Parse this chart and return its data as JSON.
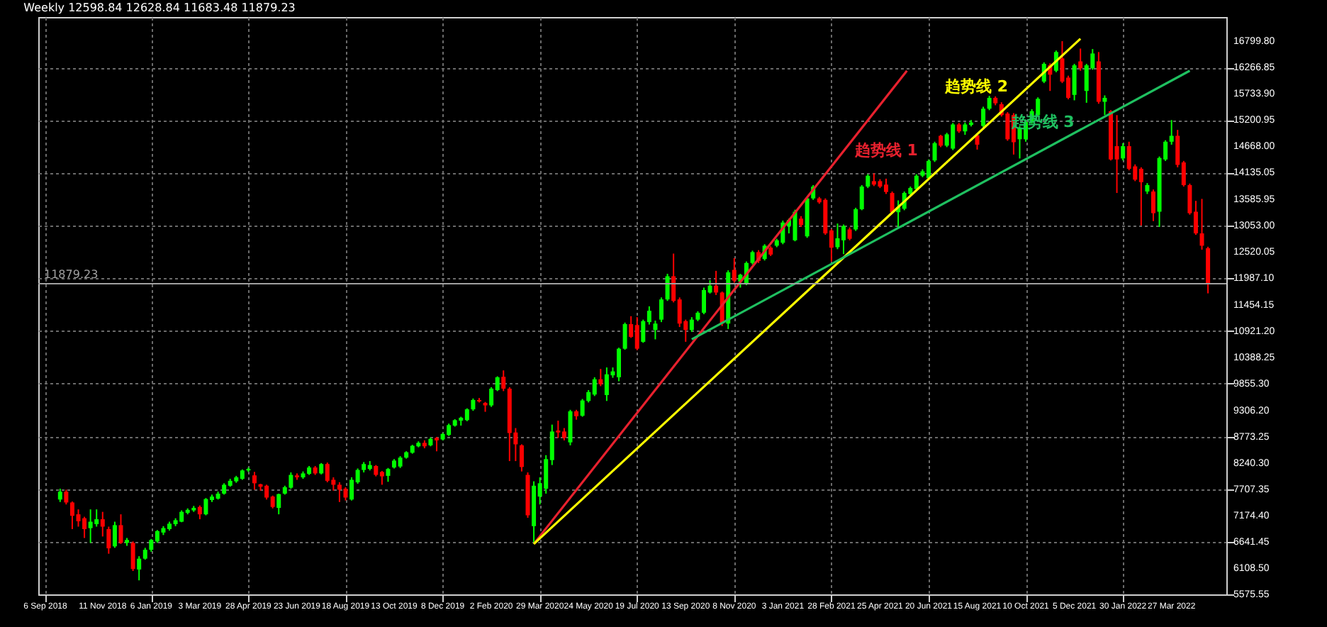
{
  "chart_data": {
    "type": "candlestick",
    "title": "Weekly  12598.84 12628.84 11683.48 11879.23",
    "x": [
      "2018-09-23",
      "2018-09-30",
      "2018-10-07",
      "2018-10-14",
      "2018-10-21",
      "2018-10-28",
      "2018-11-04",
      "2018-11-11",
      "2018-11-18",
      "2018-11-25",
      "2018-12-02",
      "2018-12-09",
      "2018-12-16",
      "2018-12-23",
      "2018-12-30",
      "2019-01-06",
      "2019-01-13",
      "2019-01-20",
      "2019-01-27",
      "2019-02-03",
      "2019-02-10",
      "2019-02-17",
      "2019-02-24",
      "2019-03-03",
      "2019-03-10",
      "2019-03-17",
      "2019-03-24",
      "2019-03-31",
      "2019-04-07",
      "2019-04-14",
      "2019-04-21",
      "2019-04-28",
      "2019-05-05",
      "2019-05-12",
      "2019-05-19",
      "2019-05-26",
      "2019-06-02",
      "2019-06-09",
      "2019-06-16",
      "2019-06-23",
      "2019-06-30",
      "2019-07-07",
      "2019-07-14",
      "2019-07-21",
      "2019-07-28",
      "2019-08-04",
      "2019-08-11",
      "2019-08-18",
      "2019-08-25",
      "2019-09-01",
      "2019-09-08",
      "2019-09-15",
      "2019-09-22",
      "2019-09-29",
      "2019-10-06",
      "2019-10-13",
      "2019-10-20",
      "2019-10-27",
      "2019-11-03",
      "2019-11-10",
      "2019-11-17",
      "2019-11-24",
      "2019-12-01",
      "2019-12-08",
      "2019-12-15",
      "2019-12-22",
      "2019-12-29",
      "2020-01-05",
      "2020-01-12",
      "2020-01-19",
      "2020-01-26",
      "2020-02-02",
      "2020-02-09",
      "2020-02-16",
      "2020-02-23",
      "2020-03-01",
      "2020-03-08",
      "2020-03-15",
      "2020-03-22",
      "2020-03-29",
      "2020-04-05",
      "2020-04-12",
      "2020-04-19",
      "2020-04-26",
      "2020-05-03",
      "2020-05-10",
      "2020-05-17",
      "2020-05-24",
      "2020-05-31",
      "2020-06-07",
      "2020-06-14",
      "2020-06-21",
      "2020-06-28",
      "2020-07-05",
      "2020-07-12",
      "2020-07-19",
      "2020-07-26",
      "2020-08-02",
      "2020-08-09",
      "2020-08-16",
      "2020-08-23",
      "2020-08-30",
      "2020-09-06",
      "2020-09-13",
      "2020-09-20",
      "2020-09-27",
      "2020-10-04",
      "2020-10-11",
      "2020-10-18",
      "2020-10-25",
      "2020-11-01",
      "2020-11-08",
      "2020-11-15",
      "2020-11-22",
      "2020-11-29",
      "2020-12-06",
      "2020-12-13",
      "2020-12-20",
      "2020-12-27",
      "2021-01-03",
      "2021-01-10",
      "2021-01-17",
      "2021-01-24",
      "2021-01-31",
      "2021-02-07",
      "2021-02-14",
      "2021-02-21",
      "2021-02-28",
      "2021-03-07",
      "2021-03-14",
      "2021-03-21",
      "2021-03-28",
      "2021-04-04",
      "2021-04-11",
      "2021-04-18",
      "2021-04-25",
      "2021-05-02",
      "2021-05-09",
      "2021-05-16",
      "2021-05-23",
      "2021-05-30",
      "2021-06-06",
      "2021-06-13",
      "2021-06-20",
      "2021-06-27",
      "2021-07-04",
      "2021-07-11",
      "2021-07-18",
      "2021-07-25",
      "2021-08-01",
      "2021-08-08",
      "2021-08-15",
      "2021-08-22",
      "2021-08-29",
      "2021-09-05",
      "2021-09-12",
      "2021-09-19",
      "2021-09-26",
      "2021-10-03",
      "2021-10-10",
      "2021-10-17",
      "2021-10-24",
      "2021-10-31",
      "2021-11-07",
      "2021-11-14",
      "2021-11-21",
      "2021-11-28",
      "2021-12-05",
      "2021-12-12",
      "2021-12-19",
      "2021-12-26",
      "2022-01-02",
      "2022-01-09",
      "2022-01-16",
      "2022-01-23",
      "2022-01-30",
      "2022-02-06",
      "2022-02-13",
      "2022-02-20",
      "2022-02-27",
      "2022-03-06",
      "2022-03-13",
      "2022-03-20",
      "2022-03-27",
      "2022-04-03",
      "2022-04-10",
      "2022-04-17",
      "2022-04-24",
      "2022-05-01",
      "2022-05-08"
    ],
    "ohlc": [
      [
        7500,
        7720,
        7450,
        7660
      ],
      [
        7660,
        7700,
        7400,
        7440
      ],
      [
        7440,
        7460,
        6900,
        7170
      ],
      [
        7200,
        7300,
        6950,
        7060
      ],
      [
        7120,
        7150,
        6720,
        6900
      ],
      [
        6920,
        7300,
        6620,
        7050
      ],
      [
        7000,
        7300,
        6950,
        7100
      ],
      [
        7100,
        7250,
        6750,
        6950
      ],
      [
        6900,
        6950,
        6400,
        6510
      ],
      [
        6550,
        7050,
        6520,
        6980
      ],
      [
        6980,
        7200,
        6600,
        6620
      ],
      [
        6620,
        6720,
        6560,
        6680
      ],
      [
        6620,
        6650,
        6050,
        6090
      ],
      [
        6080,
        6350,
        5860,
        6300
      ],
      [
        6300,
        6520,
        6280,
        6480
      ],
      [
        6480,
        6700,
        6440,
        6680
      ],
      [
        6650,
        6880,
        6620,
        6860
      ],
      [
        6830,
        6960,
        6780,
        6920
      ],
      [
        6900,
        7050,
        6870,
        7010
      ],
      [
        7000,
        7120,
        6960,
        7080
      ],
      [
        7050,
        7280,
        7040,
        7250
      ],
      [
        7230,
        7320,
        7200,
        7290
      ],
      [
        7280,
        7370,
        7250,
        7330
      ],
      [
        7350,
        7380,
        7100,
        7200
      ],
      [
        7200,
        7530,
        7180,
        7510
      ],
      [
        7490,
        7600,
        7450,
        7560
      ],
      [
        7520,
        7660,
        7500,
        7620
      ],
      [
        7620,
        7830,
        7600,
        7800
      ],
      [
        7780,
        7920,
        7760,
        7880
      ],
      [
        7870,
        7980,
        7840,
        7950
      ],
      [
        7920,
        8110,
        7900,
        8090
      ],
      [
        8090,
        8150,
        8060,
        8120
      ],
      [
        7990,
        8060,
        7700,
        7830
      ],
      [
        7810,
        7820,
        7680,
        7760
      ],
      [
        7780,
        7800,
        7500,
        7540
      ],
      [
        7560,
        7580,
        7320,
        7350
      ],
      [
        7330,
        7620,
        7200,
        7610
      ],
      [
        7620,
        7780,
        7600,
        7750
      ],
      [
        7740,
        8050,
        7720,
        8000
      ],
      [
        7990,
        8030,
        7900,
        7950
      ],
      [
        7950,
        8070,
        7920,
        8030
      ],
      [
        8020,
        8180,
        8000,
        8150
      ],
      [
        8150,
        8180,
        8000,
        8030
      ],
      [
        8030,
        8240,
        8010,
        8220
      ],
      [
        8220,
        8250,
        7850,
        7880
      ],
      [
        7900,
        7950,
        7680,
        7800
      ],
      [
        7800,
        7850,
        7450,
        7700
      ],
      [
        7720,
        7750,
        7480,
        7540
      ],
      [
        7500,
        7950,
        7480,
        7900
      ],
      [
        7850,
        8130,
        7820,
        8100
      ],
      [
        8100,
        8260,
        8050,
        8220
      ],
      [
        8120,
        8280,
        8090,
        8200
      ],
      [
        8180,
        8200,
        7970,
        8000
      ],
      [
        8060,
        8080,
        7800,
        7970
      ],
      [
        7980,
        8140,
        7860,
        8120
      ],
      [
        8150,
        8320,
        8130,
        8290
      ],
      [
        8170,
        8380,
        8140,
        8350
      ],
      [
        8350,
        8480,
        8330,
        8460
      ],
      [
        8450,
        8610,
        8430,
        8590
      ],
      [
        8580,
        8680,
        8560,
        8650
      ],
      [
        8650,
        8700,
        8540,
        8580
      ],
      [
        8600,
        8760,
        8580,
        8730
      ],
      [
        8750,
        8770,
        8480,
        8700
      ],
      [
        8720,
        8850,
        8700,
        8830
      ],
      [
        8810,
        9040,
        8790,
        9010
      ],
      [
        9000,
        9130,
        8980,
        9110
      ],
      [
        9100,
        9180,
        9000,
        9160
      ],
      [
        9110,
        9350,
        9090,
        9330
      ],
      [
        9330,
        9550,
        9300,
        9520
      ],
      [
        9520,
        9560,
        9470,
        9490
      ],
      [
        9460,
        9480,
        9280,
        9410
      ],
      [
        9410,
        9780,
        9380,
        9750
      ],
      [
        9720,
        10000,
        9700,
        9980
      ],
      [
        9990,
        10120,
        9700,
        9750
      ],
      [
        9750,
        9780,
        8280,
        8850
      ],
      [
        8860,
        8950,
        8280,
        8620
      ],
      [
        8600,
        8620,
        8070,
        8160
      ],
      [
        8000,
        8050,
        7130,
        7180
      ],
      [
        6960,
        7870,
        6600,
        7780
      ],
      [
        7560,
        7950,
        7400,
        7830
      ],
      [
        7720,
        8400,
        7620,
        8320
      ],
      [
        8300,
        9020,
        8200,
        8880
      ],
      [
        8900,
        9100,
        8750,
        8860
      ],
      [
        8880,
        8950,
        8700,
        8750
      ],
      [
        8660,
        9320,
        8600,
        9290
      ],
      [
        9290,
        9320,
        9120,
        9190
      ],
      [
        9200,
        9540,
        9180,
        9510
      ],
      [
        9500,
        9720,
        9470,
        9680
      ],
      [
        9630,
        9980,
        9600,
        9940
      ],
      [
        9940,
        10150,
        9800,
        9840
      ],
      [
        9620,
        10180,
        9500,
        10040
      ],
      [
        10020,
        10180,
        9970,
        10100
      ],
      [
        9980,
        10580,
        9900,
        10560
      ],
      [
        10560,
        11090,
        10540,
        11060
      ],
      [
        11060,
        11220,
        10780,
        10800
      ],
      [
        11040,
        11200,
        10530,
        10560
      ],
      [
        10700,
        11150,
        10680,
        11120
      ],
      [
        11100,
        11420,
        11050,
        11330
      ],
      [
        10940,
        11130,
        10750,
        11070
      ],
      [
        11150,
        11600,
        11100,
        11560
      ],
      [
        11560,
        12080,
        11530,
        12030
      ],
      [
        12030,
        12490,
        11500,
        11530
      ],
      [
        11560,
        11600,
        11000,
        11070
      ],
      [
        11120,
        11150,
        10700,
        10940
      ],
      [
        10940,
        11200,
        10900,
        11150
      ],
      [
        11150,
        11320,
        11120,
        11290
      ],
      [
        11290,
        11800,
        11260,
        11750
      ],
      [
        11700,
        11950,
        11680,
        11840
      ],
      [
        11840,
        12140,
        11650,
        11700
      ],
      [
        11700,
        11720,
        11020,
        11070
      ],
      [
        11070,
        12150,
        10960,
        12110
      ],
      [
        12160,
        12400,
        11900,
        11940
      ],
      [
        11920,
        12080,
        11800,
        12060
      ],
      [
        11890,
        12330,
        11850,
        12300
      ],
      [
        12300,
        12550,
        12270,
        12520
      ],
      [
        12520,
        12560,
        12300,
        12340
      ],
      [
        12380,
        12680,
        12350,
        12650
      ],
      [
        12610,
        12640,
        12440,
        12470
      ],
      [
        12650,
        12790,
        12620,
        12760
      ],
      [
        12710,
        13160,
        12680,
        13120
      ],
      [
        13050,
        13200,
        12900,
        13170
      ],
      [
        12760,
        13380,
        12740,
        13340
      ],
      [
        13200,
        13250,
        13030,
        13070
      ],
      [
        12840,
        13640,
        12810,
        13610
      ],
      [
        13610,
        13880,
        13580,
        13850
      ],
      [
        13610,
        13640,
        13500,
        13530
      ],
      [
        13580,
        13610,
        12870,
        12900
      ],
      [
        12960,
        12990,
        12330,
        12610
      ],
      [
        12620,
        13100,
        12580,
        12800
      ],
      [
        12760,
        13080,
        12480,
        13050
      ],
      [
        12980,
        13020,
        12760,
        12790
      ],
      [
        12980,
        13420,
        12950,
        13390
      ],
      [
        13390,
        13880,
        13370,
        13850
      ],
      [
        13850,
        14100,
        13820,
        14070
      ],
      [
        13960,
        14120,
        13860,
        13890
      ],
      [
        13960,
        14000,
        13820,
        13850
      ],
      [
        13890,
        14010,
        13700,
        13740
      ],
      [
        13720,
        13750,
        13300,
        13330
      ],
      [
        13330,
        13570,
        13000,
        13430
      ],
      [
        13400,
        13750,
        13370,
        13720
      ],
      [
        13700,
        13850,
        13680,
        13820
      ],
      [
        13800,
        14100,
        13770,
        14070
      ],
      [
        14070,
        14200,
        14040,
        14160
      ],
      [
        14020,
        14400,
        13990,
        14370
      ],
      [
        14380,
        14760,
        14350,
        14730
      ],
      [
        14880,
        14900,
        14650,
        14680
      ],
      [
        14680,
        14940,
        14650,
        14910
      ],
      [
        14620,
        15140,
        14590,
        15110
      ],
      [
        15110,
        15140,
        14940,
        14970
      ],
      [
        14970,
        15150,
        14900,
        15110
      ],
      [
        15100,
        15200,
        15070,
        15150
      ],
      [
        14890,
        14920,
        14600,
        14700
      ],
      [
        15080,
        15470,
        15050,
        15430
      ],
      [
        15430,
        15690,
        15400,
        15650
      ],
      [
        15650,
        15680,
        15500,
        15540
      ],
      [
        15520,
        15560,
        15270,
        15300
      ],
      [
        15330,
        15360,
        14780,
        14810
      ],
      [
        15300,
        15340,
        14500,
        14750
      ],
      [
        14810,
        15080,
        14420,
        15030
      ],
      [
        14810,
        15200,
        14760,
        15160
      ],
      [
        15160,
        15420,
        15130,
        15380
      ],
      [
        15300,
        15660,
        15270,
        15630
      ],
      [
        15980,
        16370,
        15950,
        16340
      ],
      [
        16310,
        16350,
        15790,
        16120
      ],
      [
        16200,
        16610,
        16170,
        16580
      ],
      [
        16450,
        16800,
        15950,
        15980
      ],
      [
        16060,
        16100,
        15620,
        15650
      ],
      [
        15710,
        16340,
        15600,
        16310
      ],
      [
        16390,
        16650,
        16200,
        16250
      ],
      [
        15790,
        16340,
        15550,
        16310
      ],
      [
        16250,
        16640,
        16220,
        16550
      ],
      [
        16390,
        16580,
        15530,
        15570
      ],
      [
        15570,
        15700,
        15300,
        15650
      ],
      [
        15380,
        15400,
        14380,
        14400
      ],
      [
        14670,
        15300,
        13720,
        14400
      ],
      [
        14420,
        14730,
        14380,
        14670
      ],
      [
        14670,
        14760,
        14180,
        14210
      ],
      [
        14260,
        14300,
        13960,
        13990
      ],
      [
        14210,
        14240,
        13060,
        13940
      ],
      [
        13750,
        13920,
        13700,
        13880
      ],
      [
        13750,
        13790,
        13150,
        13310
      ],
      [
        13340,
        14460,
        13030,
        14430
      ],
      [
        14400,
        14790,
        14370,
        14760
      ],
      [
        14760,
        15200,
        14700,
        14880
      ],
      [
        14880,
        15000,
        14240,
        14290
      ],
      [
        14340,
        14370,
        13850,
        13880
      ],
      [
        13880,
        13910,
        13280,
        13310
      ],
      [
        13340,
        13560,
        12870,
        12900
      ],
      [
        12900,
        13600,
        12570,
        12650
      ],
      [
        12598.84,
        12628.84,
        11683.48,
        11879.23
      ]
    ],
    "colors": [
      "#00ff00",
      "#ff0000",
      "#ff0000",
      "#ff0000",
      "#ff0000",
      "#00ff00",
      "#00ff00",
      "#ff0000",
      "#ff0000",
      "#00ff00",
      "#ff0000",
      "#00ff00",
      "#ff0000",
      "#00ff00",
      "#00ff00",
      "#00ff00",
      "#00ff00",
      "#00ff00",
      "#00ff00",
      "#00ff00",
      "#00ff00",
      "#00ff00",
      "#00ff00",
      "#ff0000",
      "#00ff00",
      "#00ff00",
      "#00ff00",
      "#00ff00",
      "#00ff00",
      "#00ff00",
      "#00ff00",
      "#00ff00",
      "#ff0000",
      "#ff0000",
      "#ff0000",
      "#ff0000",
      "#00ff00",
      "#00ff00",
      "#00ff00",
      "#ff0000",
      "#00ff00",
      "#00ff00",
      "#ff0000",
      "#00ff00",
      "#ff0000",
      "#ff0000",
      "#ff0000",
      "#ff0000",
      "#00ff00",
      "#00ff00",
      "#00ff00",
      "#00ff00",
      "#ff0000",
      "#ff0000",
      "#00ff00",
      "#00ff00",
      "#00ff00",
      "#00ff00",
      "#00ff00",
      "#00ff00",
      "#ff0000",
      "#00ff00",
      "#ff0000",
      "#00ff00",
      "#00ff00",
      "#00ff00",
      "#00ff00",
      "#00ff00",
      "#00ff00",
      "#ff0000",
      "#ff0000",
      "#00ff00",
      "#00ff00",
      "#ff0000",
      "#ff0000",
      "#ff0000",
      "#ff0000",
      "#ff0000",
      "#00ff00",
      "#00ff00",
      "#00ff00",
      "#00ff00",
      "#ff0000",
      "#ff0000",
      "#00ff00",
      "#ff0000",
      "#00ff00",
      "#00ff00",
      "#00ff00",
      "#ff0000",
      "#00ff00",
      "#00ff00",
      "#00ff00",
      "#00ff00",
      "#ff0000",
      "#ff0000",
      "#00ff00",
      "#00ff00",
      "#00ff00",
      "#00ff00",
      "#00ff00",
      "#ff0000",
      "#ff0000",
      "#ff0000",
      "#00ff00",
      "#00ff00",
      "#00ff00",
      "#00ff00",
      "#ff0000",
      "#ff0000",
      "#00ff00",
      "#ff0000",
      "#00ff00",
      "#00ff00",
      "#00ff00",
      "#ff0000",
      "#00ff00",
      "#ff0000",
      "#00ff00",
      "#00ff00",
      "#00ff00",
      "#00ff00",
      "#ff0000",
      "#00ff00",
      "#00ff00",
      "#ff0000",
      "#ff0000",
      "#ff0000",
      "#00ff00",
      "#00ff00",
      "#ff0000",
      "#00ff00",
      "#00ff00",
      "#00ff00",
      "#ff0000",
      "#ff0000",
      "#ff0000",
      "#ff0000",
      "#00ff00",
      "#00ff00",
      "#00ff00",
      "#00ff00",
      "#00ff00",
      "#00ff00",
      "#00ff00",
      "#ff0000",
      "#00ff00",
      "#00ff00",
      "#ff0000",
      "#00ff00",
      "#00ff00",
      "#ff0000",
      "#00ff00",
      "#00ff00",
      "#ff0000",
      "#ff0000",
      "#ff0000",
      "#ff0000",
      "#00ff00",
      "#00ff00",
      "#00ff00",
      "#00ff00",
      "#00ff00",
      "#ff0000",
      "#00ff00",
      "#ff0000",
      "#ff0000",
      "#00ff00",
      "#ff0000",
      "#00ff00",
      "#00ff00",
      "#ff0000",
      "#00ff00",
      "#ff0000",
      "#ff0000",
      "#00ff00",
      "#ff0000",
      "#ff0000",
      "#ff0000",
      "#00ff00",
      "#ff0000",
      "#00ff00",
      "#00ff00",
      "#00ff00",
      "#ff0000",
      "#ff0000",
      "#ff0000",
      "#ff0000",
      "#ff0000",
      "#ff0000"
    ],
    "series": [
      {
        "type": "line",
        "name": "趋势线 1",
        "color": "#e8212e",
        "x": [
          "2020-03-22",
          "2021-05-26"
        ],
        "values": [
          6600,
          16200
        ]
      },
      {
        "type": "line",
        "name": "趋势线 2",
        "color": "#ffff00",
        "x": [
          "2020-03-22",
          "2021-12-12"
        ],
        "values": [
          6600,
          16850
        ]
      },
      {
        "type": "line",
        "name": "趋势线 3",
        "color": "#1fc060",
        "x": [
          "2020-09-20",
          "2022-04-17"
        ],
        "values": [
          10750,
          16200
        ]
      }
    ],
    "ref_lines": [
      {
        "axis": "y",
        "value": 11879.23,
        "label": "11879.23",
        "color": "#a0a0a0"
      }
    ],
    "xlim": [
      "2018-09-06",
      "2022-05-21"
    ],
    "ylim": [
      5575.55,
      17290
    ],
    "xticks": [
      {
        "value": "2018-09-06",
        "label": "6 Sep 2018"
      },
      {
        "value": "2018-11-11",
        "label": "11 Nov 2018"
      },
      {
        "value": "2019-01-06",
        "label": "6 Jan 2019"
      },
      {
        "value": "2019-03-03",
        "label": "3 Mar 2019"
      },
      {
        "value": "2019-04-28",
        "label": "28 Apr 2019"
      },
      {
        "value": "2019-06-23",
        "label": "23 Jun 2019"
      },
      {
        "value": "2019-08-18",
        "label": "18 Aug 2019"
      },
      {
        "value": "2019-10-13",
        "label": "13 Oct 2019"
      },
      {
        "value": "2019-12-08",
        "label": "8 Dec 2019"
      },
      {
        "value": "2020-02-02",
        "label": "2 Feb 2020"
      },
      {
        "value": "2020-03-29",
        "label": "29 Mar 2020"
      },
      {
        "value": "2020-05-24",
        "label": "24 May 2020"
      },
      {
        "value": "2020-07-19",
        "label": "19 Jul 2020"
      },
      {
        "value": "2020-09-13",
        "label": "13 Sep 2020"
      },
      {
        "value": "2020-11-08",
        "label": "8 Nov 2020"
      },
      {
        "value": "2021-01-03",
        "label": "3 Jan 2021"
      },
      {
        "value": "2021-02-28",
        "label": "28 Feb 2021"
      },
      {
        "value": "2021-04-25",
        "label": "25 Apr 2021"
      },
      {
        "value": "2021-06-20",
        "label": "20 Jun 2021"
      },
      {
        "value": "2021-08-15",
        "label": "15 Aug 2021"
      },
      {
        "value": "2021-10-10",
        "label": "10 Oct 2021"
      },
      {
        "value": "2021-12-05",
        "label": "5 Dec 2021"
      },
      {
        "value": "2022-01-30",
        "label": "30 Jan 2022"
      },
      {
        "value": "2022-03-27",
        "label": "27 Mar 2022"
      }
    ],
    "yticks": [
      {
        "value": 5575.55,
        "label": "5575.55"
      },
      {
        "value": 6108.5,
        "label": "6108.50"
      },
      {
        "value": 6641.45,
        "label": "6641.45"
      },
      {
        "value": 7174.4,
        "label": "7174.40"
      },
      {
        "value": 7707.35,
        "label": "7707.35"
      },
      {
        "value": 8240.3,
        "label": "8240.30"
      },
      {
        "value": 8773.25,
        "label": "8773.25"
      },
      {
        "value": 9306.2,
        "label": "9306.20"
      },
      {
        "value": 9855.3,
        "label": "9855.30"
      },
      {
        "value": 10388.25,
        "label": "10388.25"
      },
      {
        "value": 10921.2,
        "label": "10921.20"
      },
      {
        "value": 11454.15,
        "label": "11454.15"
      },
      {
        "value": 11987.1,
        "label": "11987.10"
      },
      {
        "value": 12520.05,
        "label": "12520.05"
      },
      {
        "value": 13053,
        "label": "13053.00"
      },
      {
        "value": 13585.95,
        "label": "13585.95"
      },
      {
        "value": 14135.05,
        "label": "14135.05"
      },
      {
        "value": 14668,
        "label": "14668.00"
      },
      {
        "value": 15200.95,
        "label": "15200.95"
      },
      {
        "value": 15733.9,
        "label": "15733.90"
      },
      {
        "value": 16266.85,
        "label": "16266.85"
      },
      {
        "value": 16799.8,
        "label": "16799.80"
      }
    ],
    "grid": true
  }
}
